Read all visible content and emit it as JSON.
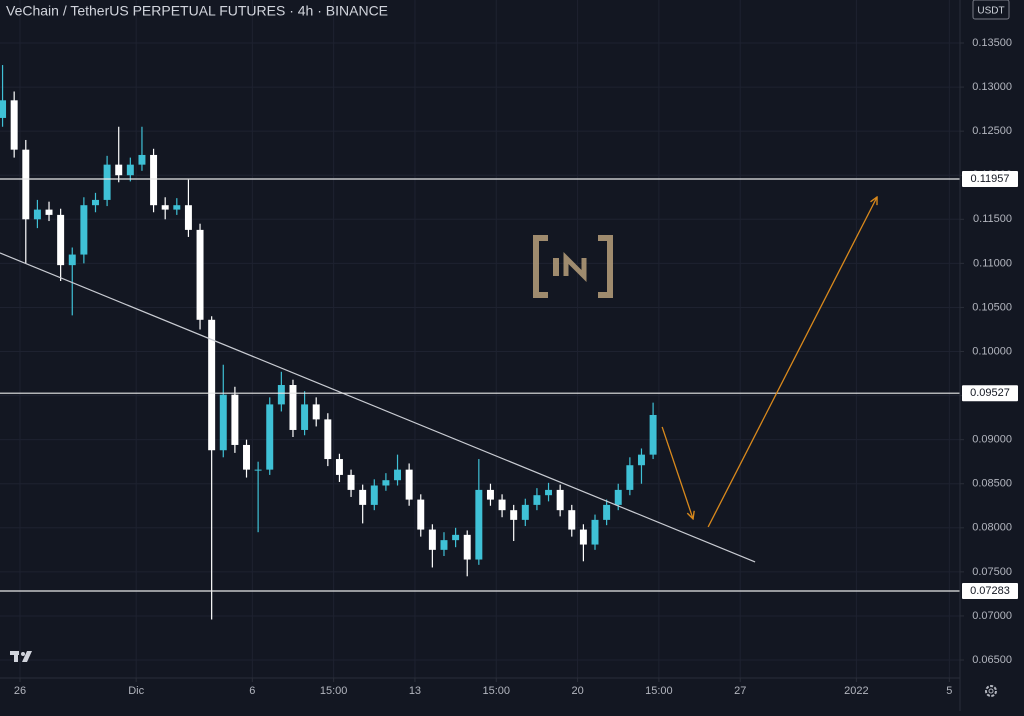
{
  "chart_data": {
    "type": "candlestick",
    "title": "VeChain / TetherUS PERPETUAL FUTURES · 4h · BINANCE",
    "currency": "USDT",
    "x": [
      -0.75,
      -0.25,
      0.25,
      0.75,
      1.25,
      1.75,
      2.25,
      2.75,
      3.25,
      3.75,
      4.25,
      4.75,
      5.25,
      5.75,
      6.25,
      6.75,
      7.25,
      7.75,
      8.25,
      8.75,
      9.25,
      9.75,
      10.25,
      10.75,
      11.25,
      11.75,
      12.25,
      12.75,
      13.25,
      13.75,
      14.25,
      14.75,
      15.25,
      15.75,
      16.25,
      16.75,
      17.25,
      17.75,
      18.25,
      18.75,
      19.25,
      19.75,
      20.25,
      20.75,
      21.25,
      21.75,
      22.25,
      22.75,
      23.25,
      23.75,
      24.25,
      24.75,
      25.25,
      25.75,
      26.25,
      26.75,
      27.25
    ],
    "open": [
      0.1265,
      0.1285,
      0.1229,
      0.115,
      0.1161,
      0.1155,
      0.1098,
      0.111,
      0.1166,
      0.1172,
      0.1212,
      0.12,
      0.1212,
      0.1223,
      0.1166,
      0.1161,
      0.1166,
      0.1138,
      0.1036,
      0.0888,
      0.0951,
      0.0894,
      0.0866,
      0.0866,
      0.094,
      0.0962,
      0.0911,
      0.094,
      0.0923,
      0.0878,
      0.086,
      0.0843,
      0.0826,
      0.0848,
      0.0854,
      0.0866,
      0.0832,
      0.0798,
      0.0775,
      0.0786,
      0.0792,
      0.0764,
      0.0843,
      0.0832,
      0.082,
      0.0809,
      0.0826,
      0.0837,
      0.0843,
      0.082,
      0.0798,
      0.0781,
      0.0809,
      0.0826,
      0.0843,
      0.0871,
      0.0883
    ],
    "high": [
      0.1325,
      0.1295,
      0.124,
      0.1172,
      0.117,
      0.1162,
      0.1118,
      0.1175,
      0.118,
      0.1222,
      0.1255,
      0.122,
      0.1255,
      0.123,
      0.1175,
      0.1174,
      0.1195,
      0.1145,
      0.104,
      0.0985,
      0.096,
      0.09,
      0.0875,
      0.0948,
      0.0977,
      0.0968,
      0.0955,
      0.0948,
      0.093,
      0.0884,
      0.0866,
      0.0849,
      0.0855,
      0.0862,
      0.0883,
      0.0873,
      0.0838,
      0.0804,
      0.0795,
      0.08,
      0.0797,
      0.0878,
      0.085,
      0.0838,
      0.0826,
      0.0833,
      0.0845,
      0.0851,
      0.0849,
      0.0826,
      0.0804,
      0.0815,
      0.0832,
      0.085,
      0.088,
      0.089,
      0.0942
    ],
    "low": [
      0.1255,
      0.122,
      0.11,
      0.114,
      0.1148,
      0.108,
      0.1041,
      0.11,
      0.1158,
      0.1165,
      0.1192,
      0.1193,
      0.1205,
      0.1158,
      0.115,
      0.1155,
      0.113,
      0.1025,
      0.0696,
      0.088,
      0.0885,
      0.0857,
      0.0795,
      0.086,
      0.0932,
      0.0903,
      0.0905,
      0.0915,
      0.087,
      0.0852,
      0.0835,
      0.0805,
      0.082,
      0.0842,
      0.0848,
      0.0825,
      0.079,
      0.0755,
      0.0768,
      0.0778,
      0.0745,
      0.0758,
      0.0825,
      0.0812,
      0.0785,
      0.0802,
      0.082,
      0.083,
      0.0813,
      0.079,
      0.0762,
      0.0775,
      0.0803,
      0.082,
      0.0837,
      0.085,
      0.0878
    ],
    "close": [
      0.1285,
      0.1229,
      0.115,
      0.1161,
      0.1155,
      0.1098,
      0.111,
      0.1166,
      0.1172,
      0.1212,
      0.12,
      0.1212,
      0.1223,
      0.1166,
      0.1161,
      0.1166,
      0.1138,
      0.1036,
      0.0888,
      0.0951,
      0.0894,
      0.0866,
      0.0866,
      0.094,
      0.0962,
      0.0911,
      0.094,
      0.0923,
      0.0878,
      0.086,
      0.0843,
      0.0826,
      0.0848,
      0.0854,
      0.0866,
      0.0832,
      0.0798,
      0.0775,
      0.0786,
      0.0792,
      0.0764,
      0.0843,
      0.0832,
      0.082,
      0.0809,
      0.0826,
      0.0837,
      0.0843,
      0.082,
      0.0798,
      0.0781,
      0.0809,
      0.0826,
      0.0843,
      0.0871,
      0.0883,
      0.0928
    ],
    "up_color": "#3fc1d6",
    "down_color": "#ffffff",
    "xlim": [
      -0.86,
      40.46
    ],
    "ylim": [
      0.06296,
      0.13988
    ],
    "xticks": [
      {
        "value": 0,
        "label": "26"
      },
      {
        "value": 5,
        "label": "Dic"
      },
      {
        "value": 10,
        "label": "6"
      },
      {
        "value": 13.5,
        "label": "15:00"
      },
      {
        "value": 17,
        "label": "13"
      },
      {
        "value": 20.5,
        "label": "15:00"
      },
      {
        "value": 24,
        "label": "20"
      },
      {
        "value": 27.5,
        "label": "15:00"
      },
      {
        "value": 31,
        "label": "27"
      },
      {
        "value": 36,
        "label": "2022"
      },
      {
        "value": 40,
        "label": "5"
      }
    ],
    "yticks": [
      {
        "value": 0.065,
        "label": "0.06500"
      },
      {
        "value": 0.07,
        "label": "0.07000"
      },
      {
        "value": 0.075,
        "label": "0.07500"
      },
      {
        "value": 0.08,
        "label": "0.08000"
      },
      {
        "value": 0.085,
        "label": "0.08500"
      },
      {
        "value": 0.09,
        "label": "0.09000"
      },
      {
        "value": 0.095,
        "label": "0.09500"
      },
      {
        "value": 0.1,
        "label": "0.10000"
      },
      {
        "value": 0.105,
        "label": "0.10500"
      },
      {
        "value": 0.11,
        "label": "0.11000"
      },
      {
        "value": 0.115,
        "label": "0.11500"
      },
      {
        "value": 0.12,
        "label": "0.12000"
      },
      {
        "value": 0.125,
        "label": "0.12500"
      },
      {
        "value": 0.13,
        "label": "0.13000"
      },
      {
        "value": 0.135,
        "label": "0.13500"
      }
    ],
    "grid": true,
    "hlines": [
      0.11957,
      0.09527,
      0.07283
    ],
    "hline_color": "#e8e8e8",
    "trendline": {
      "x": [
        -0.86,
        31.64
      ],
      "y": [
        0.11118,
        0.07613
      ],
      "color": "#c9ccd3"
    },
    "arrows": [
      {
        "x": [
          27.64,
          28.97
        ],
        "y": [
          0.09144,
          0.08101
        ]
      },
      {
        "x": [
          29.62,
          36.89
        ],
        "y": [
          0.0801,
          0.11753
        ]
      }
    ],
    "arrow_color": "#d9891c"
  }
}
